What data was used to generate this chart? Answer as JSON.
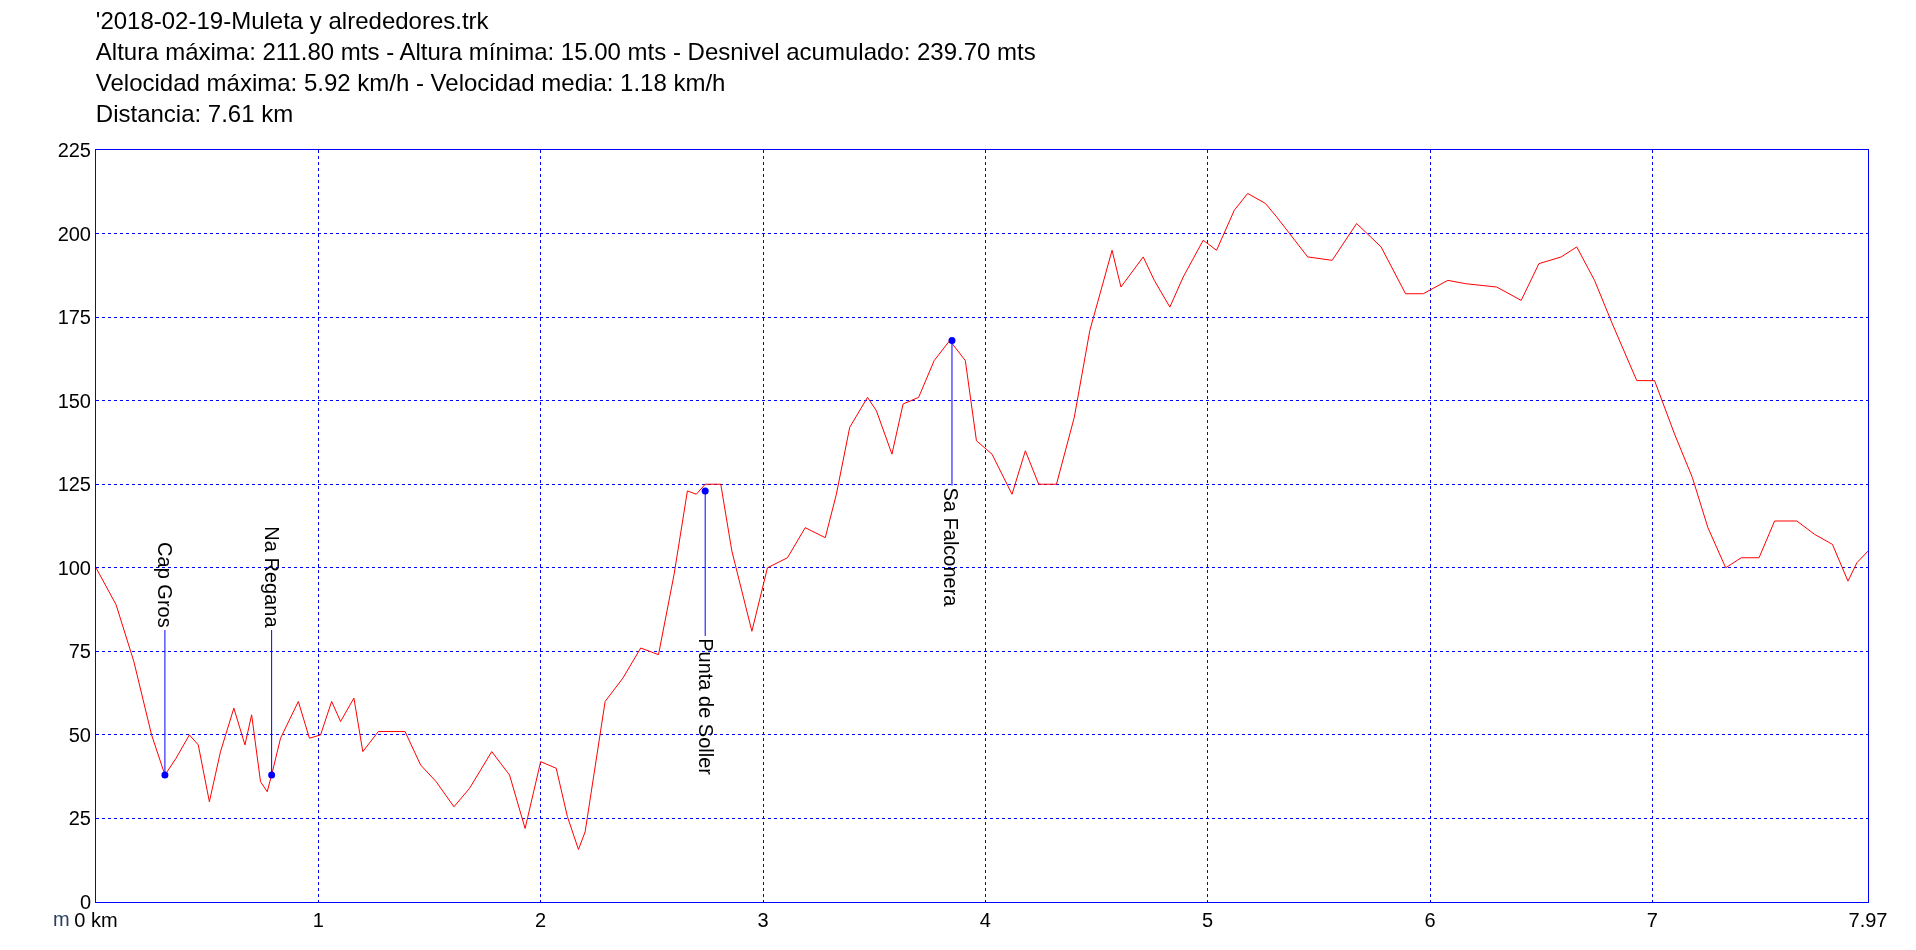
{
  "chart_data": {
    "type": "line",
    "title": "'2018-02-19-Muleta y alrededores.trk\nAltura máxima: 211.80 mts - Altura mínima: 15.00 mts - Desnivel acumulado: 239.70 mts\nVelocidad máxima: 5.92 km/h - Velocidad media: 1.18 km/h\nDistancia: 7.61 km",
    "ylabel": "m",
    "x": [
      0,
      0.09,
      0.17,
      0.25,
      0.31,
      0.36,
      0.42,
      0.46,
      0.51,
      0.56,
      0.62,
      0.67,
      0.7,
      0.74,
      0.77,
      0.79,
      0.83,
      0.91,
      0.96,
      1.01,
      1.06,
      1.1,
      1.16,
      1.2,
      1.27,
      1.39,
      1.46,
      1.53,
      1.61,
      1.68,
      1.78,
      1.86,
      1.93,
      2.0,
      2.07,
      2.12,
      2.17,
      2.2,
      2.29,
      2.37,
      2.45,
      2.53,
      2.6,
      2.66,
      2.7,
      2.74,
      2.81,
      2.86,
      2.95,
      3.02,
      3.11,
      3.19,
      3.28,
      3.33,
      3.39,
      3.47,
      3.51,
      3.58,
      3.63,
      3.7,
      3.77,
      3.84,
      3.91,
      3.96,
      4.03,
      4.12,
      4.18,
      4.24,
      4.32,
      4.4,
      4.47,
      4.57,
      4.61,
      4.71,
      4.76,
      4.83,
      4.89,
      4.98,
      5.04,
      5.12,
      5.18,
      5.26,
      5.31,
      5.45,
      5.56,
      5.67,
      5.78,
      5.89,
      5.97,
      6.08,
      6.16,
      6.3,
      6.41,
      6.49,
      6.59,
      6.66,
      6.74,
      6.82,
      6.93,
      7.01,
      7.1,
      7.18,
      7.25,
      7.33,
      7.4,
      7.48,
      7.55,
      7.65,
      7.73,
      7.81,
      7.88,
      7.92,
      7.97
    ],
    "series": [
      {
        "color": "#ff0000",
        "values": [
          100,
          89,
          72,
          50,
          38,
          43,
          50,
          47,
          30,
          45,
          58,
          47,
          56,
          36,
          33,
          38,
          49,
          60,
          49,
          50,
          60,
          54,
          61,
          45,
          51,
          51,
          41,
          36,
          28.5,
          34,
          45,
          38,
          22,
          42,
          40,
          25.6,
          15.7,
          21,
          60,
          67,
          76,
          74,
          98,
          123,
          122,
          125,
          125,
          105,
          81,
          100,
          103,
          112,
          109,
          122,
          142,
          151,
          147,
          134,
          149,
          151,
          162,
          168,
          162,
          138,
          134,
          122,
          135,
          125,
          125,
          145,
          171,
          195,
          184,
          193,
          186,
          178,
          187,
          198,
          195,
          207,
          212,
          209,
          205,
          193,
          192,
          203,
          196,
          182,
          182,
          186,
          185,
          184,
          180,
          191,
          193,
          196,
          186,
          173,
          156,
          156,
          140,
          127,
          112,
          100,
          103,
          103,
          114,
          114,
          110,
          107,
          96,
          101.5,
          105
        ]
      },
      {
        "type": "scatter",
        "color": "#0000ff",
        "marker": "circle",
        "x": [
          0.31,
          0.79,
          2.74,
          3.85
        ],
        "values": [
          38,
          38,
          123,
          168
        ]
      }
    ],
    "annotations": [
      {
        "text": "Cap Gros",
        "x": 0.31,
        "y": 38
      },
      {
        "text": "Na Regana",
        "x": 0.79,
        "y": 38
      },
      {
        "text": "Punta de Soller",
        "x": 2.74,
        "y": 123
      },
      {
        "text": "Sa Falconera",
        "x": 3.85,
        "y": 168
      }
    ],
    "xlim": [
      0,
      7.97
    ],
    "xticks": [
      {
        "value": 0,
        "label": "0 km"
      },
      1,
      2,
      3,
      4,
      5,
      6,
      7,
      7.97
    ],
    "ylim": [
      0,
      225
    ],
    "yticks": [
      0,
      25,
      50,
      75,
      100,
      125,
      150,
      175,
      200,
      225
    ],
    "grid": true
  }
}
